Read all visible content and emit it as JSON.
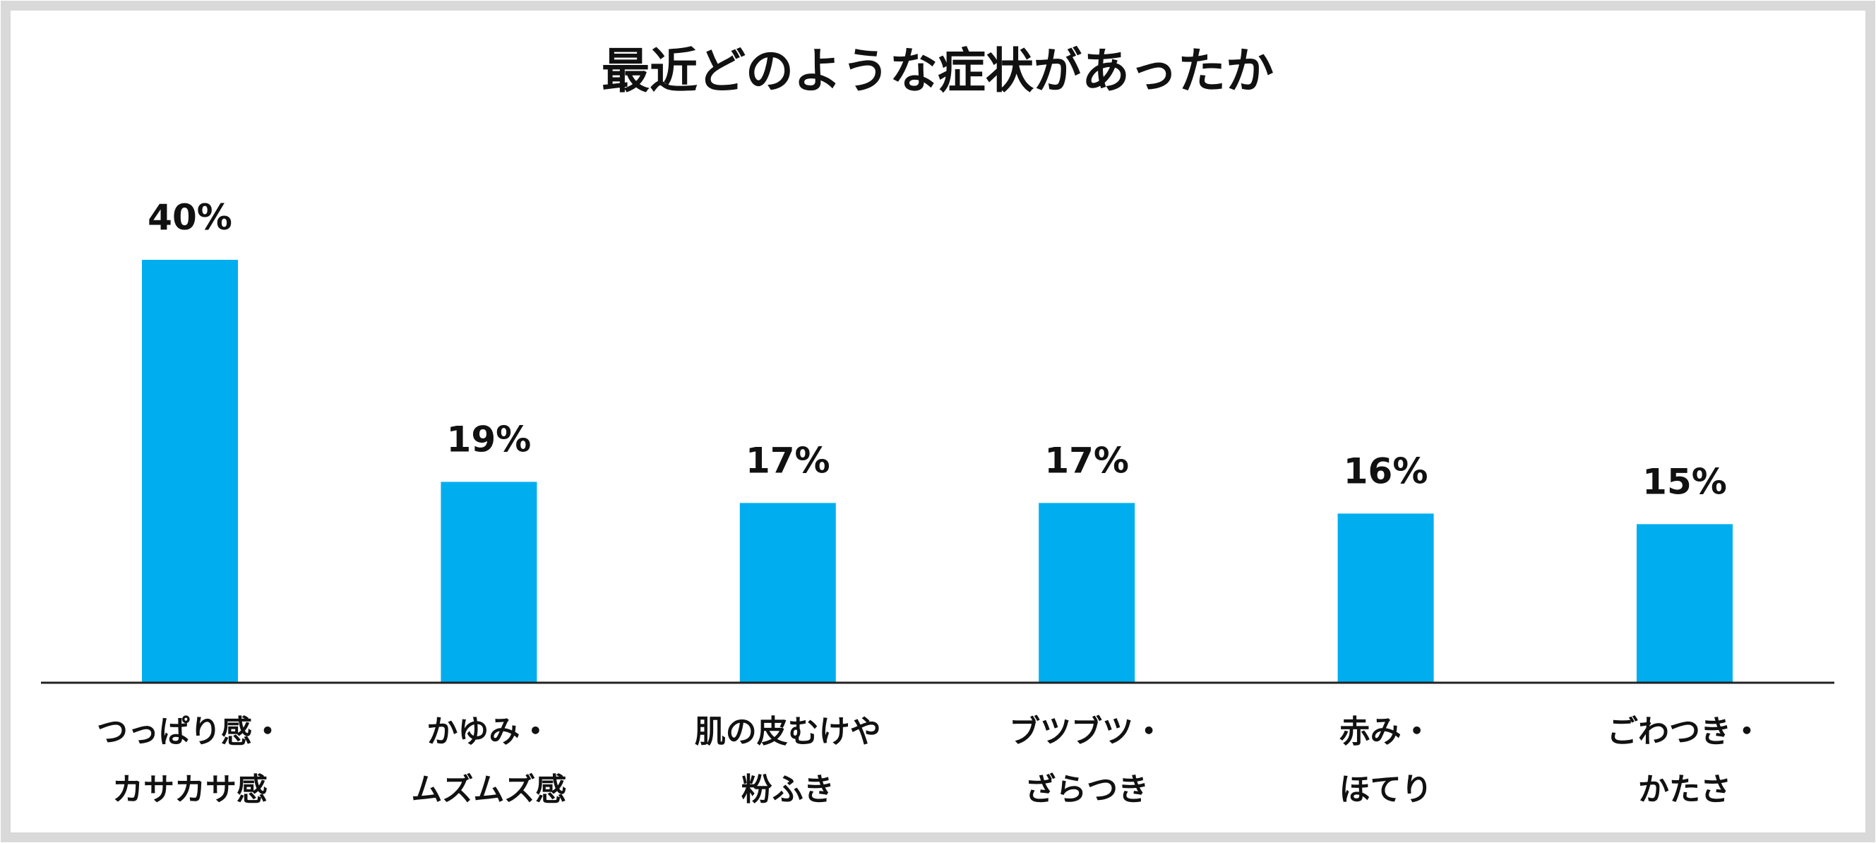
{
  "chart_data": {
    "type": "bar",
    "title": "最近どのような症状があったか",
    "xlabel": "",
    "ylabel": "",
    "grid": false,
    "legend": "none",
    "ylim": [
      0,
      40
    ],
    "categories": [
      [
        "つっぱり感・",
        "カサカサ感"
      ],
      [
        "かゆみ・",
        "ムズムズ感"
      ],
      [
        "肌の皮むけや",
        "粉ふき"
      ],
      [
        "ブツブツ・",
        "ざらつき"
      ],
      [
        "赤み・",
        "ほてり"
      ],
      [
        "ごわつき・",
        "かたさ"
      ]
    ],
    "values": [
      40,
      19,
      17,
      17,
      16,
      15
    ],
    "data_labels": [
      "40%",
      "19%",
      "17%",
      "17%",
      "16%",
      "15%"
    ]
  },
  "colors": {
    "bar": "#00AEEF",
    "axis": "#222222",
    "frame": "#D9D9D9",
    "text": "#111111"
  }
}
